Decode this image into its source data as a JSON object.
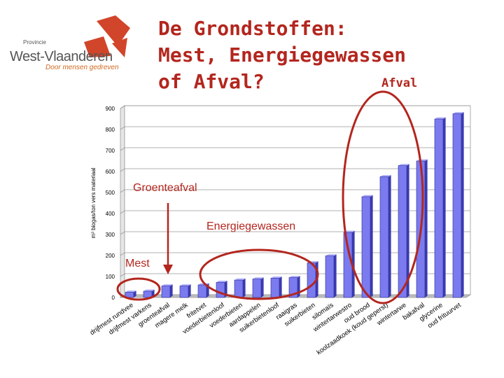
{
  "logo": {
    "small": "Provincie",
    "name": "West-Vlaanderen",
    "tagline": "Door mensen gedreven",
    "colors": {
      "red": "#d1452a",
      "gray": "#555555",
      "orange": "#d2691e"
    }
  },
  "title": {
    "line1": "De Grondstoffen:",
    "line2": "Mest, Energiegewassen",
    "line3": "of Afval?"
  },
  "annotations": {
    "afval": "Afval",
    "groenteafval": "Groenteafval",
    "energiegewassen": "Energiegewassen",
    "mest": "Mest",
    "color": "#b3261e"
  },
  "chart_data": {
    "type": "bar",
    "ylabel": "m³ biogas/ton vers materiaal",
    "ylim": [
      0,
      900
    ],
    "yticks": [
      "0",
      "100",
      "200",
      "300",
      "400",
      "500",
      "600",
      "700",
      "800",
      "900"
    ],
    "bar_color": "#7b7bef",
    "categories": [
      "drijfmest rundvee",
      "drijfmest varkens",
      "groenteafval",
      "magere melk",
      "fritetvet",
      "voederbietenloof",
      "voederbieten",
      "aardappelen",
      "suikerbietenloof",
      "raaigras",
      "suikerbieten",
      "silomaïs",
      "wintertarwestro",
      "oud brood",
      "koolzaadkoek (koud geperst)",
      "wintertarwe",
      "bakafval",
      "glycerine",
      "oud frituurvet"
    ],
    "values": [
      25,
      30,
      55,
      55,
      60,
      72,
      83,
      88,
      92,
      95,
      165,
      198,
      310,
      480,
      575,
      628,
      650,
      850,
      875
    ]
  }
}
